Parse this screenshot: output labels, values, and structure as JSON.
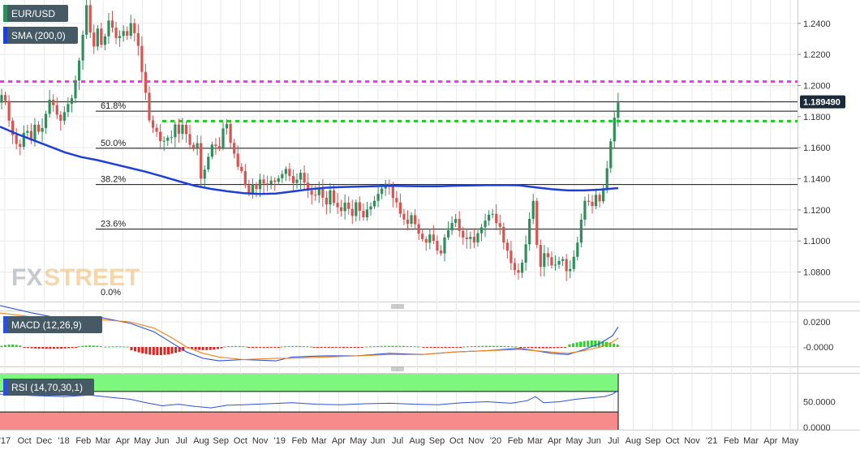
{
  "colors": {
    "up": "#2f8f5b",
    "down": "#d9534f",
    "sma": "#1f3fd6",
    "magenta": "#e23de0",
    "green_dash": "#27c42b",
    "macd": "#2d50d8",
    "signal": "#f0831e",
    "hist_pos": "#2ad12a",
    "hist_neg": "#e0231f",
    "rsi_line": "#2d50d8",
    "ob_zone": "#7df77d",
    "os_zone": "#f78a8a",
    "grid": "#e9e9e9",
    "badge_bg": "#455a64",
    "price_tag_bg": "#1b2a38"
  },
  "legend": {
    "symbol": "EUR/USD",
    "sma": "SMA (200,0)",
    "macd": "MACD (12,26,9)",
    "rsi": "RSI (14,70,30,1)"
  },
  "watermark": {
    "fx": "FX",
    "street": "STREET"
  },
  "chart_data": {
    "type": "candlestick",
    "symbol": "EUR/USD",
    "timeframe": "weekly",
    "price_axis": {
      "ticks": [
        1.08,
        1.1,
        1.12,
        1.14,
        1.16,
        1.18,
        1.2,
        1.22,
        1.24
      ],
      "labels": [
        "1.0800",
        "1.1000",
        "1.1200",
        "1.1400",
        "1.1600",
        "1.1800",
        "1.2000",
        "1.2200",
        "1.2400"
      ],
      "range": [
        1.061,
        1.255
      ]
    },
    "last_price": {
      "value": 1.18949,
      "label": "1.189490"
    },
    "x_labels": [
      "'17",
      "Oct",
      "Dec",
      "'18",
      "Feb",
      "Mar",
      "Apr",
      "May",
      "Jun",
      "Jul",
      "Aug",
      "Sep",
      "Oct",
      "Nov",
      "'19",
      "Feb",
      "Mar",
      "Apr",
      "May",
      "Jun",
      "Jul",
      "Aug",
      "Sep",
      "Oct",
      "Nov",
      "'20",
      "Feb",
      "Mar",
      "Apr",
      "May",
      "Jun",
      "Jul",
      "Aug",
      "Sep",
      "Oct",
      "Nov",
      "'21",
      "Feb",
      "Mar",
      "Apr",
      "May"
    ],
    "fibonacci": [
      {
        "label": "61.8%",
        "value": 1.1835
      },
      {
        "label": "50.0%",
        "value": 1.1596
      },
      {
        "label": "38.2%",
        "value": 1.1363
      },
      {
        "label": "23.6%",
        "value": 1.1076
      },
      {
        "label": "0.0%",
        "value": 1.0636
      }
    ],
    "horizontal_lines": [
      {
        "kind": "resistance-dotted",
        "value": 1.2025,
        "color": "magenta"
      },
      {
        "kind": "support-dotted",
        "value": 1.1771,
        "color": "green"
      },
      {
        "kind": "solid",
        "value": 1.2555
      },
      {
        "kind": "solid",
        "value": 1.18949
      }
    ],
    "price_path": [
      [
        0,
        1.181
      ],
      [
        3,
        1.192
      ],
      [
        7,
        1.198
      ],
      [
        10,
        1.185
      ],
      [
        14,
        1.176
      ],
      [
        18,
        1.168
      ],
      [
        22,
        1.163
      ],
      [
        26,
        1.158
      ],
      [
        30,
        1.168
      ],
      [
        35,
        1.173
      ],
      [
        40,
        1.163
      ],
      [
        45,
        1.175
      ],
      [
        52,
        1.168
      ],
      [
        58,
        1.18
      ],
      [
        64,
        1.192
      ],
      [
        70,
        1.185
      ],
      [
        76,
        1.176
      ],
      [
        80,
        1.181
      ],
      [
        86,
        1.188
      ],
      [
        90,
        1.19
      ],
      [
        94,
        1.2
      ],
      [
        98,
        1.21
      ],
      [
        101,
        1.22
      ],
      [
        105,
        1.235
      ],
      [
        109,
        1.252
      ],
      [
        113,
        1.235
      ],
      [
        118,
        1.225
      ],
      [
        122,
        1.238
      ],
      [
        127,
        1.226
      ],
      [
        132,
        1.232
      ],
      [
        136,
        1.242
      ],
      [
        141,
        1.237
      ],
      [
        147,
        1.228
      ],
      [
        153,
        1.236
      ],
      [
        159,
        1.232
      ],
      [
        164,
        1.241
      ],
      [
        169,
        1.232
      ],
      [
        174,
        1.223
      ],
      [
        178,
        1.205
      ],
      [
        183,
        1.192
      ],
      [
        188,
        1.17
      ],
      [
        193,
        1.175
      ],
      [
        198,
        1.165
      ],
      [
        203,
        1.163
      ],
      [
        208,
        1.168
      ],
      [
        212,
        1.162
      ],
      [
        217,
        1.177
      ],
      [
        222,
        1.168
      ],
      [
        227,
        1.175
      ],
      [
        231,
        1.17
      ],
      [
        236,
        1.162
      ],
      [
        241,
        1.16
      ],
      [
        245,
        1.165
      ],
      [
        250,
        1.14
      ],
      [
        254,
        1.145
      ],
      [
        258,
        1.152
      ],
      [
        263,
        1.162
      ],
      [
        267,
        1.162
      ],
      [
        272,
        1.158
      ],
      [
        277,
        1.172
      ],
      [
        281,
        1.178
      ],
      [
        285,
        1.165
      ],
      [
        290,
        1.158
      ],
      [
        295,
        1.148
      ],
      [
        300,
        1.145
      ],
      [
        305,
        1.135
      ],
      [
        310,
        1.13
      ],
      [
        314,
        1.137
      ],
      [
        318,
        1.133
      ],
      [
        322,
        1.14
      ],
      [
        327,
        1.137
      ],
      [
        331,
        1.136
      ],
      [
        336,
        1.139
      ],
      [
        341,
        1.138
      ],
      [
        345,
        1.14
      ],
      [
        350,
        1.143
      ],
      [
        354,
        1.147
      ],
      [
        359,
        1.142
      ],
      [
        363,
        1.137
      ],
      [
        368,
        1.139
      ],
      [
        372,
        1.145
      ],
      [
        377,
        1.138
      ],
      [
        381,
        1.133
      ],
      [
        386,
        1.13
      ],
      [
        390,
        1.128
      ],
      [
        395,
        1.135
      ],
      [
        400,
        1.128
      ],
      [
        404,
        1.122
      ],
      [
        409,
        1.133
      ],
      [
        413,
        1.125
      ],
      [
        418,
        1.122
      ],
      [
        422,
        1.118
      ],
      [
        427,
        1.125
      ],
      [
        431,
        1.122
      ],
      [
        436,
        1.115
      ],
      [
        441,
        1.125
      ],
      [
        445,
        1.12
      ],
      [
        450,
        1.115
      ],
      [
        454,
        1.12
      ],
      [
        459,
        1.122
      ],
      [
        463,
        1.125
      ],
      [
        468,
        1.13
      ],
      [
        472,
        1.133
      ],
      [
        477,
        1.137
      ],
      [
        482,
        1.135
      ],
      [
        486,
        1.128
      ],
      [
        491,
        1.125
      ],
      [
        495,
        1.118
      ],
      [
        500,
        1.114
      ],
      [
        504,
        1.11
      ],
      [
        509,
        1.117
      ],
      [
        513,
        1.112
      ],
      [
        518,
        1.105
      ],
      [
        522,
        1.102
      ],
      [
        527,
        1.098
      ],
      [
        531,
        1.105
      ],
      [
        536,
        1.101
      ],
      [
        540,
        1.095
      ],
      [
        545,
        1.09
      ],
      [
        549,
        1.101
      ],
      [
        554,
        1.106
      ],
      [
        558,
        1.11
      ],
      [
        563,
        1.116
      ],
      [
        567,
        1.108
      ],
      [
        572,
        1.103
      ],
      [
        576,
        1.1
      ],
      [
        581,
        1.104
      ],
      [
        586,
        1.098
      ],
      [
        590,
        1.104
      ],
      [
        595,
        1.108
      ],
      [
        599,
        1.112
      ],
      [
        604,
        1.116
      ],
      [
        608,
        1.12
      ],
      [
        613,
        1.111
      ],
      [
        617,
        1.113
      ],
      [
        622,
        1.1
      ],
      [
        627,
        1.095
      ],
      [
        631,
        1.087
      ],
      [
        636,
        1.082
      ],
      [
        640,
        1.078
      ],
      [
        645,
        1.084
      ],
      [
        649,
        1.094
      ],
      [
        654,
        1.108
      ],
      [
        658,
        1.135
      ],
      [
        662,
        1.11
      ],
      [
        667,
        1.079
      ],
      [
        671,
        1.09
      ],
      [
        676,
        1.095
      ],
      [
        680,
        1.082
      ],
      [
        685,
        1.087
      ],
      [
        689,
        1.082
      ],
      [
        694,
        1.093
      ],
      [
        698,
        1.083
      ],
      [
        703,
        1.078
      ],
      [
        707,
        1.086
      ],
      [
        711,
        1.092
      ],
      [
        715,
        1.101
      ],
      [
        719,
        1.115
      ],
      [
        724,
        1.128
      ],
      [
        728,
        1.125
      ],
      [
        732,
        1.122
      ],
      [
        737,
        1.13
      ],
      [
        741,
        1.125
      ],
      [
        745,
        1.13
      ],
      [
        750,
        1.145
      ],
      [
        755,
        1.164
      ],
      [
        759,
        1.177
      ],
      [
        762,
        1.189
      ]
    ],
    "sma_200": {
      "name": "SMA (200,0)",
      "path": [
        [
          0,
          1.1735
        ],
        [
          20,
          1.169
        ],
        [
          40,
          1.165
        ],
        [
          60,
          1.161
        ],
        [
          80,
          1.157
        ],
        [
          100,
          1.154
        ],
        [
          120,
          1.152
        ],
        [
          140,
          1.1495
        ],
        [
          160,
          1.147
        ],
        [
          180,
          1.1445
        ],
        [
          200,
          1.1415
        ],
        [
          220,
          1.1385
        ],
        [
          240,
          1.1355
        ],
        [
          260,
          1.1335
        ],
        [
          280,
          1.132
        ],
        [
          300,
          1.1308
        ],
        [
          320,
          1.1302
        ],
        [
          340,
          1.1305
        ],
        [
          360,
          1.1318
        ],
        [
          380,
          1.1332
        ],
        [
          400,
          1.1342
        ],
        [
          420,
          1.1347
        ],
        [
          440,
          1.1349
        ],
        [
          460,
          1.1352
        ],
        [
          480,
          1.1355
        ],
        [
          500,
          1.1353
        ],
        [
          520,
          1.1352
        ],
        [
          540,
          1.1352
        ],
        [
          560,
          1.1355
        ],
        [
          580,
          1.1357
        ],
        [
          600,
          1.1359
        ],
        [
          620,
          1.136
        ],
        [
          640,
          1.1358
        ],
        [
          660,
          1.1345
        ],
        [
          680,
          1.1333
        ],
        [
          700,
          1.1325
        ],
        [
          720,
          1.1325
        ],
        [
          740,
          1.133
        ],
        [
          762,
          1.134
        ]
      ]
    },
    "macd": {
      "axis": {
        "ticks": [
          0.02,
          0.0
        ],
        "labels": [
          "0.0200",
          "-0.0000"
        ]
      },
      "series": [
        {
          "name": "MACD",
          "path": [
            [
              0,
              0.033
            ],
            [
              40,
              0.027
            ],
            [
              80,
              0.022
            ],
            [
              120,
              0.024
            ],
            [
              160,
              0.019
            ],
            [
              190,
              0.012
            ],
            [
              210,
              0.004
            ],
            [
              230,
              -0.004
            ],
            [
              250,
              -0.009
            ],
            [
              270,
              -0.011
            ],
            [
              300,
              -0.01
            ],
            [
              340,
              -0.011
            ],
            [
              360,
              -0.008
            ],
            [
              400,
              -0.007
            ],
            [
              440,
              -0.007
            ],
            [
              480,
              -0.005
            ],
            [
              520,
              -0.006
            ],
            [
              560,
              -0.004
            ],
            [
              600,
              -0.003
            ],
            [
              640,
              -0.001
            ],
            [
              660,
              -0.003
            ],
            [
              680,
              -0.005
            ],
            [
              700,
              -0.006
            ],
            [
              720,
              -0.002
            ],
            [
              740,
              0.003
            ],
            [
              755,
              0.009
            ],
            [
              762,
              0.016
            ]
          ]
        },
        {
          "name": "Signal",
          "path": [
            [
              0,
              0.027
            ],
            [
              40,
              0.024
            ],
            [
              80,
              0.021
            ],
            [
              120,
              0.022
            ],
            [
              160,
              0.02
            ],
            [
              190,
              0.015
            ],
            [
              210,
              0.008
            ],
            [
              230,
              0.0
            ],
            [
              250,
              -0.005
            ],
            [
              270,
              -0.008
            ],
            [
              300,
              -0.01
            ],
            [
              340,
              -0.009
            ],
            [
              360,
              -0.009
            ],
            [
              400,
              -0.008
            ],
            [
              440,
              -0.007
            ],
            [
              480,
              -0.006
            ],
            [
              520,
              -0.006
            ],
            [
              560,
              -0.004
            ],
            [
              600,
              -0.003
            ],
            [
              640,
              -0.002
            ],
            [
              660,
              -0.003
            ],
            [
              680,
              -0.004
            ],
            [
              700,
              -0.005
            ],
            [
              720,
              -0.003
            ],
            [
              740,
              0.0
            ],
            [
              755,
              0.004
            ],
            [
              762,
              0.007
            ]
          ]
        }
      ],
      "histogram_windows": [
        {
          "from": 0,
          "to": 28,
          "amp": 0.002
        },
        {
          "from": 28,
          "to": 95,
          "amp": -0.0015
        },
        {
          "from": 95,
          "to": 128,
          "amp": 0.0012
        },
        {
          "from": 128,
          "to": 160,
          "amp": 0.0005
        },
        {
          "from": 160,
          "to": 230,
          "amp": -0.0065
        },
        {
          "from": 230,
          "to": 275,
          "amp": -0.0025
        },
        {
          "from": 275,
          "to": 305,
          "amp": 0.0008
        },
        {
          "from": 305,
          "to": 345,
          "amp": -0.0005
        },
        {
          "from": 345,
          "to": 385,
          "amp": 0.0008
        },
        {
          "from": 385,
          "to": 450,
          "amp": -0.0006
        },
        {
          "from": 450,
          "to": 520,
          "amp": 0.0009
        },
        {
          "from": 520,
          "to": 570,
          "amp": -0.0007
        },
        {
          "from": 570,
          "to": 640,
          "amp": 0.0009
        },
        {
          "from": 640,
          "to": 700,
          "amp": -0.001
        },
        {
          "from": 700,
          "to": 762,
          "amp": 0.0052
        }
      ]
    },
    "rsi": {
      "axis": {
        "ticks": [
          50,
          0
        ],
        "labels": [
          "50.0000",
          "0.0000"
        ]
      },
      "overbought": 70,
      "oversold": 30,
      "path": [
        [
          0,
          65
        ],
        [
          40,
          62
        ],
        [
          80,
          60
        ],
        [
          110,
          63
        ],
        [
          140,
          58
        ],
        [
          160,
          55
        ],
        [
          180,
          48
        ],
        [
          200,
          42
        ],
        [
          220,
          45
        ],
        [
          240,
          41
        ],
        [
          260,
          38
        ],
        [
          280,
          43
        ],
        [
          300,
          44
        ],
        [
          330,
          46
        ],
        [
          360,
          48
        ],
        [
          390,
          45
        ],
        [
          420,
          44
        ],
        [
          450,
          46
        ],
        [
          480,
          47
        ],
        [
          510,
          45
        ],
        [
          540,
          44
        ],
        [
          570,
          48
        ],
        [
          600,
          50
        ],
        [
          630,
          47
        ],
        [
          650,
          52
        ],
        [
          660,
          60
        ],
        [
          670,
          48
        ],
        [
          690,
          50
        ],
        [
          710,
          55
        ],
        [
          730,
          58
        ],
        [
          745,
          60
        ],
        [
          755,
          65
        ],
        [
          762,
          72
        ]
      ]
    }
  }
}
